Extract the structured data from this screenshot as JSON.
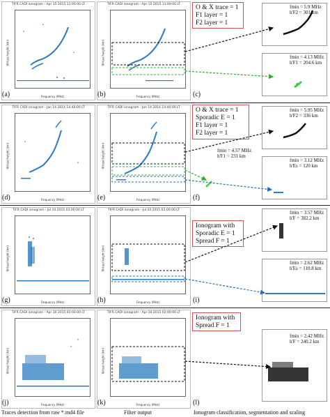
{
  "rows": [
    {
      "raw": {
        "label": "(a)",
        "title": "TIFR CADI ionogram - Apr 15  2015  11:00:00  LT"
      },
      "filt": {
        "label": "(b)",
        "title": "TIFR CADI ionogram - Apr 15  2015  11:00:00  LT"
      },
      "cls": {
        "label": "(c)",
        "lines": [
          "O & X trace = 1",
          "F1 layer = 1",
          "F2 layer = 1"
        ]
      },
      "upper": {
        "fmin": "fmin = 5.9 MHz",
        "h": "h'F2 = 301 km"
      },
      "lower": {
        "fmin": "fmin = 4.13 MHz",
        "h": "h'F1 = 204.6 km"
      },
      "mid": null
    },
    {
      "raw": {
        "label": "(d)",
        "title": "TIFR CADI ionogram - Jan 14  2014  14:40:00  LT"
      },
      "filt": {
        "label": "(e)",
        "title": "TIFR CADI ionogram - Jan 14  2014  14:40:00  LT"
      },
      "cls": {
        "label": "(f)",
        "lines": [
          "O & X trace = 1",
          "Sporadic E   = 1",
          "F1 layer = 1",
          "F2 layer = 1"
        ]
      },
      "upper": {
        "fmin": "fmin = 5.95 MHz",
        "h": "h'F2 = 336 km"
      },
      "mid": {
        "fmin": "fmin = 4.57 MHz",
        "h": "h'F1 = 231 km"
      },
      "lower": {
        "fmin": "fmin = 3.12 MHz",
        "h": "h'Es   = 120 km"
      }
    },
    {
      "raw": {
        "label": "(g)",
        "title": "TIFR CADI ionogram - Jul 10  2015  03:00:00  LT"
      },
      "filt": {
        "label": "(h)",
        "title": "TIFR CADI ionogram - Jul 10  2015  03:00:00  LT"
      },
      "cls": {
        "label": "(i)",
        "lines": [
          "Ionogram with",
          "Sporadic E  = 1",
          "Spread F = 1"
        ]
      },
      "upper": {
        "fmin": "fmin = 3.57 MHz",
        "h": "h'F   = 382.2 km"
      },
      "lower": {
        "fmin": "fmin = 2.62 MHz",
        "h": "h'Es   = 110.8 km"
      },
      "mid": null
    },
    {
      "raw": {
        "label": "(j)",
        "title": "TIFR CADI ionogram - Apr 30  2015  02:00:00  LT"
      },
      "filt": {
        "label": "(k)",
        "title": "TIFR CADI ionogram - Apr 30  2015  02:00:00  LT"
      },
      "cls": {
        "label": "(l)",
        "lines": [
          "Ionogram with",
          "Spread F = 1"
        ]
      },
      "upper": {
        "fmin": "fmin = 2.42 MHz",
        "h": "h'F  = 240.2 km"
      },
      "lower": null,
      "mid": null
    }
  ],
  "axis": {
    "xlabel": "Frequency (MHz)",
    "ylabel": "Virtual height (km)"
  },
  "captions": {
    "left": "Traces detection from raw *.md4 file",
    "mid": "Filter output",
    "right": "Ionogram classification, segmentation and scaling"
  }
}
